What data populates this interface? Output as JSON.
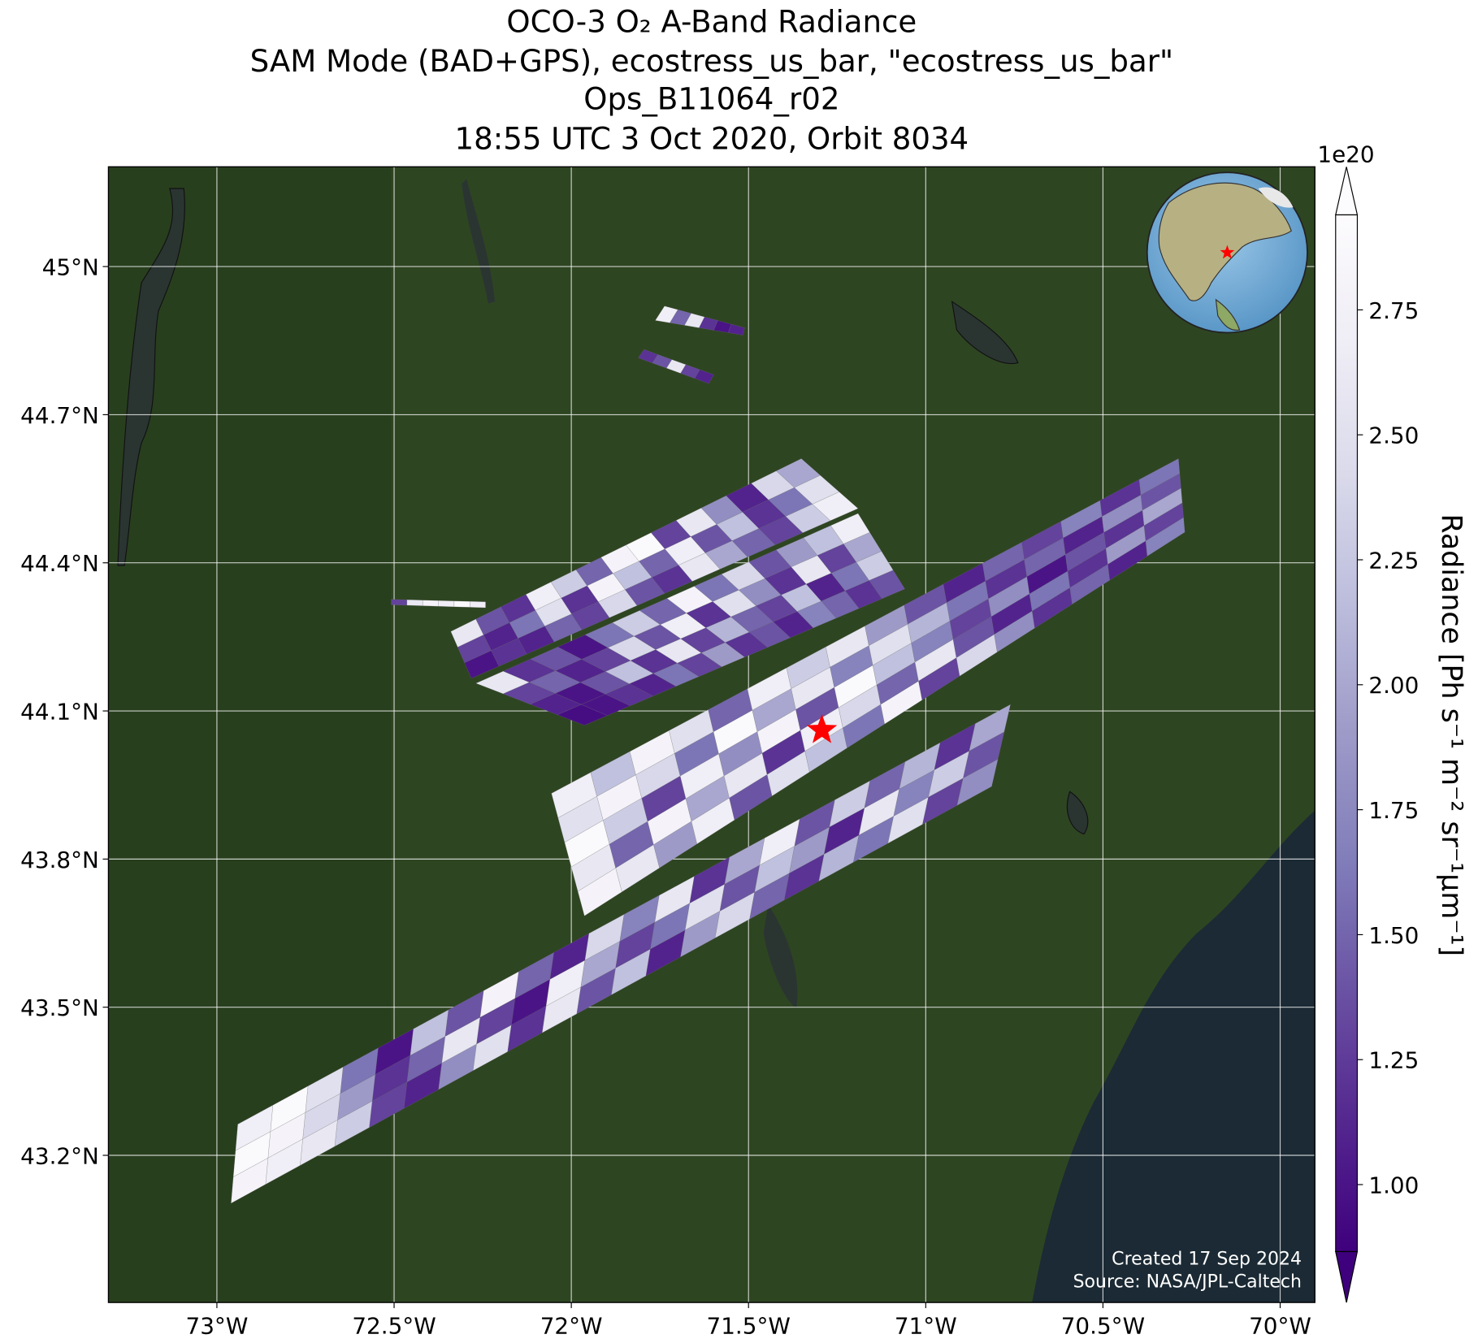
{
  "chart_data": {
    "type": "map",
    "title": [
      "OCO-3 O₂ A-Band Radiance",
      "SAM Mode (BAD+GPS), ecostress_us_bar, \"ecostress_us_bar\"",
      "Ops_B11064_r02",
      "18:55 UTC 3 Oct 2020, Orbit 8034"
    ],
    "xlim": [
      -73.306,
      -69.902
    ],
    "ylim": [
      42.902,
      45.202
    ],
    "xticks": [
      {
        "value": -73,
        "label": "73°W"
      },
      {
        "value": -72.5,
        "label": "72.5°W"
      },
      {
        "value": -72,
        "label": "72°W"
      },
      {
        "value": -71.5,
        "label": "71.5°W"
      },
      {
        "value": -71,
        "label": "71°W"
      },
      {
        "value": -70.5,
        "label": "70.5°W"
      },
      {
        "value": -70,
        "label": "70°W"
      }
    ],
    "yticks": [
      {
        "value": 43.2,
        "label": "43.2°N"
      },
      {
        "value": 43.5,
        "label": "43.5°N"
      },
      {
        "value": 43.8,
        "label": "43.8°N"
      },
      {
        "value": 44.1,
        "label": "44.1°N"
      },
      {
        "value": 44.4,
        "label": "44.4°N"
      },
      {
        "value": 44.7,
        "label": "44.7°N"
      },
      {
        "value": 45,
        "label": "45°N"
      }
    ],
    "grid": true,
    "colorbar": {
      "label": "Radiance [Ph s⁻¹ m⁻² sr⁻¹μm⁻¹]",
      "exponent": "1e20",
      "clim": [
        0.866,
        2.94
      ],
      "extend": "both",
      "ticks": [
        {
          "value": 1,
          "label": "1.00"
        },
        1.25,
        {
          "value": 1.5,
          "label": "1.50"
        },
        1.75,
        {
          "value": 2,
          "label": "2.00"
        },
        2.25,
        {
          "value": 2.5,
          "label": "2.50"
        },
        2.75
      ],
      "colormap": [
        "#3f007d",
        "#54278f",
        "#6a51a3",
        "#807dba",
        "#9e9ac8",
        "#bcbddc",
        "#dadaeb",
        "#efedf5",
        "#fcfbfd"
      ]
    },
    "target": {
      "lon": -71.293,
      "lat": 44.061,
      "color": "#ff0000"
    },
    "swaths": [
      {
        "corners": [
          [
            -72.96,
            43.103
          ],
          [
            -72.941,
            43.263
          ],
          [
            -70.761,
            44.113
          ],
          [
            -70.814,
            43.947
          ]
        ],
        "values": [
          [
            2.8,
            2.7,
            2.6,
            2.3,
            1.3,
            1.1,
            1.8,
            2.5,
            1.2,
            2.6,
            1.4,
            2.2,
            1.1,
            1.9,
            2.4,
            1.5,
            1.2,
            2.1,
            1.6,
            2.5,
            1.3,
            1.8
          ],
          [
            2.9,
            2.8,
            2.4,
            1.9,
            1.2,
            1.5,
            2.6,
            1.3,
            1.0,
            2.7,
            2.0,
            1.3,
            1.6,
            2.5,
            1.4,
            2.2,
            1.9,
            1.1,
            2.6,
            1.7,
            2.3,
            1.4
          ],
          [
            2.7,
            2.9,
            2.5,
            1.6,
            1.0,
            2.2,
            1.4,
            2.8,
            1.5,
            1.1,
            2.4,
            1.7,
            2.6,
            1.2,
            2.0,
            2.7,
            1.4,
            2.3,
            1.5,
            2.1,
            1.2,
            2.0
          ]
        ]
      },
      {
        "corners": [
          [
            -71.963,
            43.685
          ],
          [
            -72.056,
            43.933
          ],
          [
            -70.287,
            44.611
          ],
          [
            -70.269,
            44.462
          ]
        ],
        "values": [
          [
            2.8,
            2.6,
            1.9,
            2.7,
            1.4,
            2.5,
            2.2,
            1.6,
            2.8,
            1.3,
            2.4,
            1.8,
            1.2,
            1.5,
            1.1,
            1.7
          ],
          [
            2.6,
            1.5,
            2.8,
            2.0,
            2.6,
            1.2,
            2.7,
            2.4,
            1.5,
            2.6,
            1.4,
            1.1,
            1.6,
            1.2,
            1.9,
            1.3
          ],
          [
            2.9,
            2.3,
            1.3,
            2.7,
            1.8,
            2.8,
            1.4,
            2.9,
            2.2,
            1.7,
            1.3,
            1.8,
            1.0,
            1.4,
            1.2,
            2.0
          ],
          [
            2.5,
            2.8,
            2.4,
            1.6,
            2.9,
            2.0,
            2.6,
            1.7,
            2.5,
            2.1,
            1.6,
            1.2,
            1.5,
            1.1,
            1.8,
            1.4
          ],
          [
            2.7,
            2.2,
            2.8,
            2.5,
            1.5,
            2.7,
            2.3,
            2.6,
            1.9,
            1.4,
            1.1,
            1.5,
            1.3,
            1.7,
            1.2,
            1.6
          ]
        ]
      },
      {
        "corners": [
          [
            -72.282,
            44.166
          ],
          [
            -72.34,
            44.261
          ],
          [
            -71.351,
            44.611
          ],
          [
            -71.191,
            44.51
          ]
        ],
        "values": [
          [
            1.0,
            1.2,
            1.1,
            1.5,
            1.3,
            2.4,
            1.4,
            1.2,
            2.6,
            2.0,
            1.5,
            1.3,
            2.3,
            2.7
          ],
          [
            1.3,
            1.1,
            1.6,
            2.5,
            1.2,
            2.8,
            2.2,
            1.5,
            2.7,
            1.4,
            2.2,
            1.2,
            1.6,
            2.5
          ],
          [
            2.6,
            1.4,
            1.2,
            2.7,
            2.3,
            1.5,
            2.8,
            2.9,
            1.3,
            2.6,
            1.8,
            1.1,
            2.4,
            2.0
          ]
        ]
      },
      {
        "corners": [
          [
            -71.963,
            44.071
          ],
          [
            -72.269,
            44.156
          ],
          [
            -71.191,
            44.5
          ],
          [
            -71.059,
            44.347
          ]
        ],
        "values": [
          [
            0.95,
            1.0,
            1.2,
            1.1,
            1.6,
            1.3,
            1.9,
            1.2,
            1.4,
            1.1,
            1.7,
            1.5,
            1.2,
            1.4
          ],
          [
            1.1,
            1.0,
            1.4,
            2.2,
            1.2,
            2.6,
            1.3,
            2.1,
            1.5,
            1.3,
            2.2,
            1.1,
            1.6,
            2.3
          ],
          [
            1.3,
            1.5,
            1.1,
            1.3,
            2.4,
            1.4,
            2.7,
            1.2,
            2.5,
            1.8,
            1.2,
            2.6,
            1.3,
            2.0
          ],
          [
            2.6,
            1.2,
            1.4,
            1.0,
            1.6,
            2.3,
            1.5,
            2.8,
            1.6,
            2.4,
            1.4,
            1.9,
            2.2,
            2.7
          ]
        ]
      },
      {
        "corners": [
          [
            -72.508,
            44.315
          ],
          [
            -72.508,
            44.326
          ],
          [
            -72.242,
            44.321
          ],
          [
            -72.242,
            44.309
          ]
        ],
        "values": [
          [
            1.3,
            2.6,
            2.8,
            2.7,
            2.9,
            2.7
          ]
        ]
      },
      {
        "corners": [
          [
            -71.763,
            44.891
          ],
          [
            -71.737,
            44.92
          ],
          [
            -71.511,
            44.876
          ],
          [
            -71.516,
            44.861
          ]
        ],
        "values": [
          [
            2.7,
            1.5,
            2.6,
            1.2,
            1.0,
            1.1
          ]
        ]
      },
      {
        "corners": [
          [
            -71.811,
            44.815
          ],
          [
            -71.795,
            44.832
          ],
          [
            -71.598,
            44.781
          ],
          [
            -71.612,
            44.763
          ]
        ],
        "values": [
          [
            1.2,
            1.4,
            2.6,
            1.3,
            1.1
          ]
        ]
      }
    ],
    "footer": [
      "Created 17 Sep 2024",
      "Source: NASA/JPL-Caltech"
    ]
  }
}
